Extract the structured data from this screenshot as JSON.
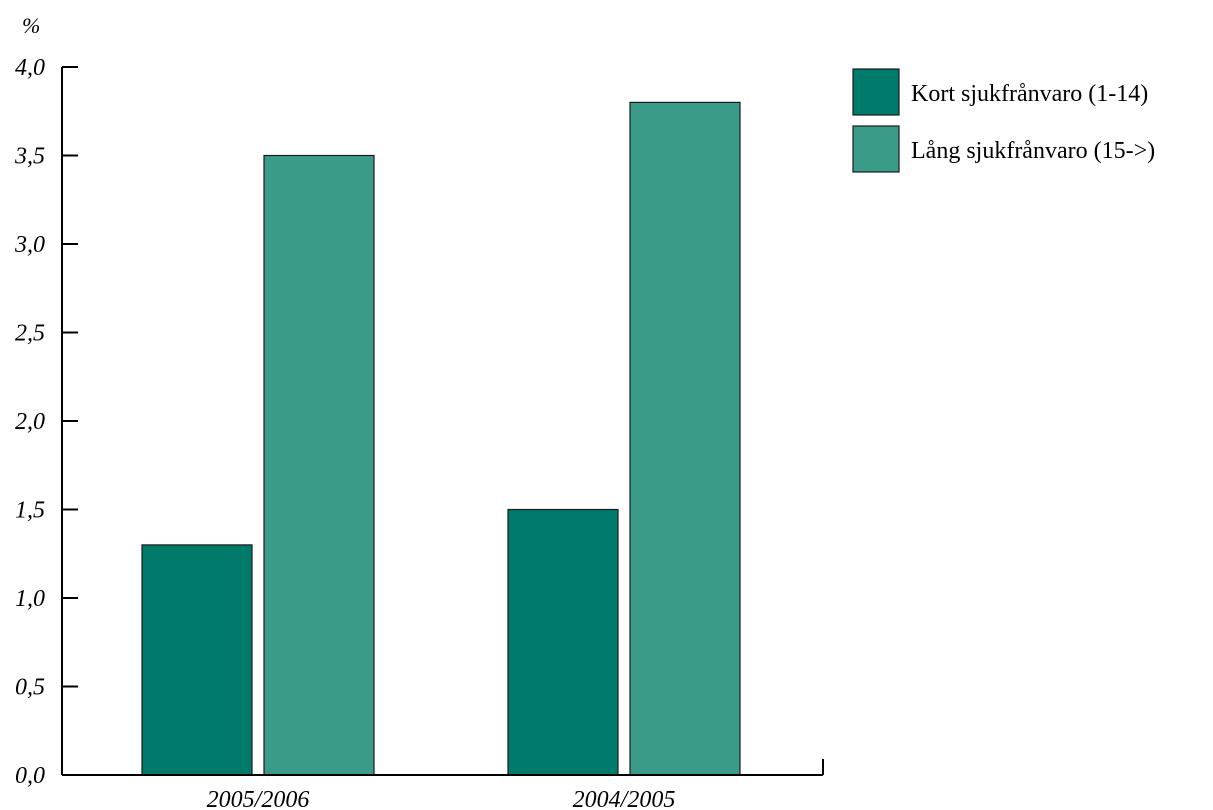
{
  "chart_data": {
    "type": "bar",
    "unit_label": "%",
    "categories": [
      "2005/2006",
      "2004/2005"
    ],
    "series": [
      {
        "name": "Kort sjukfrånvaro (1-14)",
        "color": "#007A6B",
        "values": [
          1.3,
          1.5
        ]
      },
      {
        "name": "Lång sjukfrånvaro (15->)",
        "color": "#3A9B88",
        "values": [
          3.5,
          3.8
        ]
      }
    ],
    "ylim": [
      0,
      4.0
    ],
    "yticks": [
      {
        "value": 0.0,
        "label": "0,0"
      },
      {
        "value": 0.5,
        "label": "0,5"
      },
      {
        "value": 1.0,
        "label": "1,0"
      },
      {
        "value": 1.5,
        "label": "1,5"
      },
      {
        "value": 2.0,
        "label": "2,0"
      },
      {
        "value": 2.5,
        "label": "2,5"
      },
      {
        "value": 3.0,
        "label": "3,0"
      },
      {
        "value": 3.5,
        "label": "3,5"
      },
      {
        "value": 4.0,
        "label": "4,0"
      }
    ],
    "grid": false,
    "legend_position": "top-right"
  }
}
